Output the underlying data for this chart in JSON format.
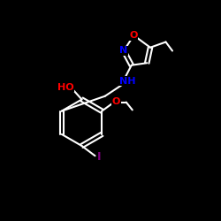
{
  "background_color": "#000000",
  "bond_color": "#ffffff",
  "atom_colors": {
    "O": "#ff0000",
    "N": "#0000ff",
    "I": "#800080",
    "C": "#ffffff",
    "H": "#ffffff"
  },
  "figsize": [
    2.5,
    2.5
  ],
  "dpi": 100
}
